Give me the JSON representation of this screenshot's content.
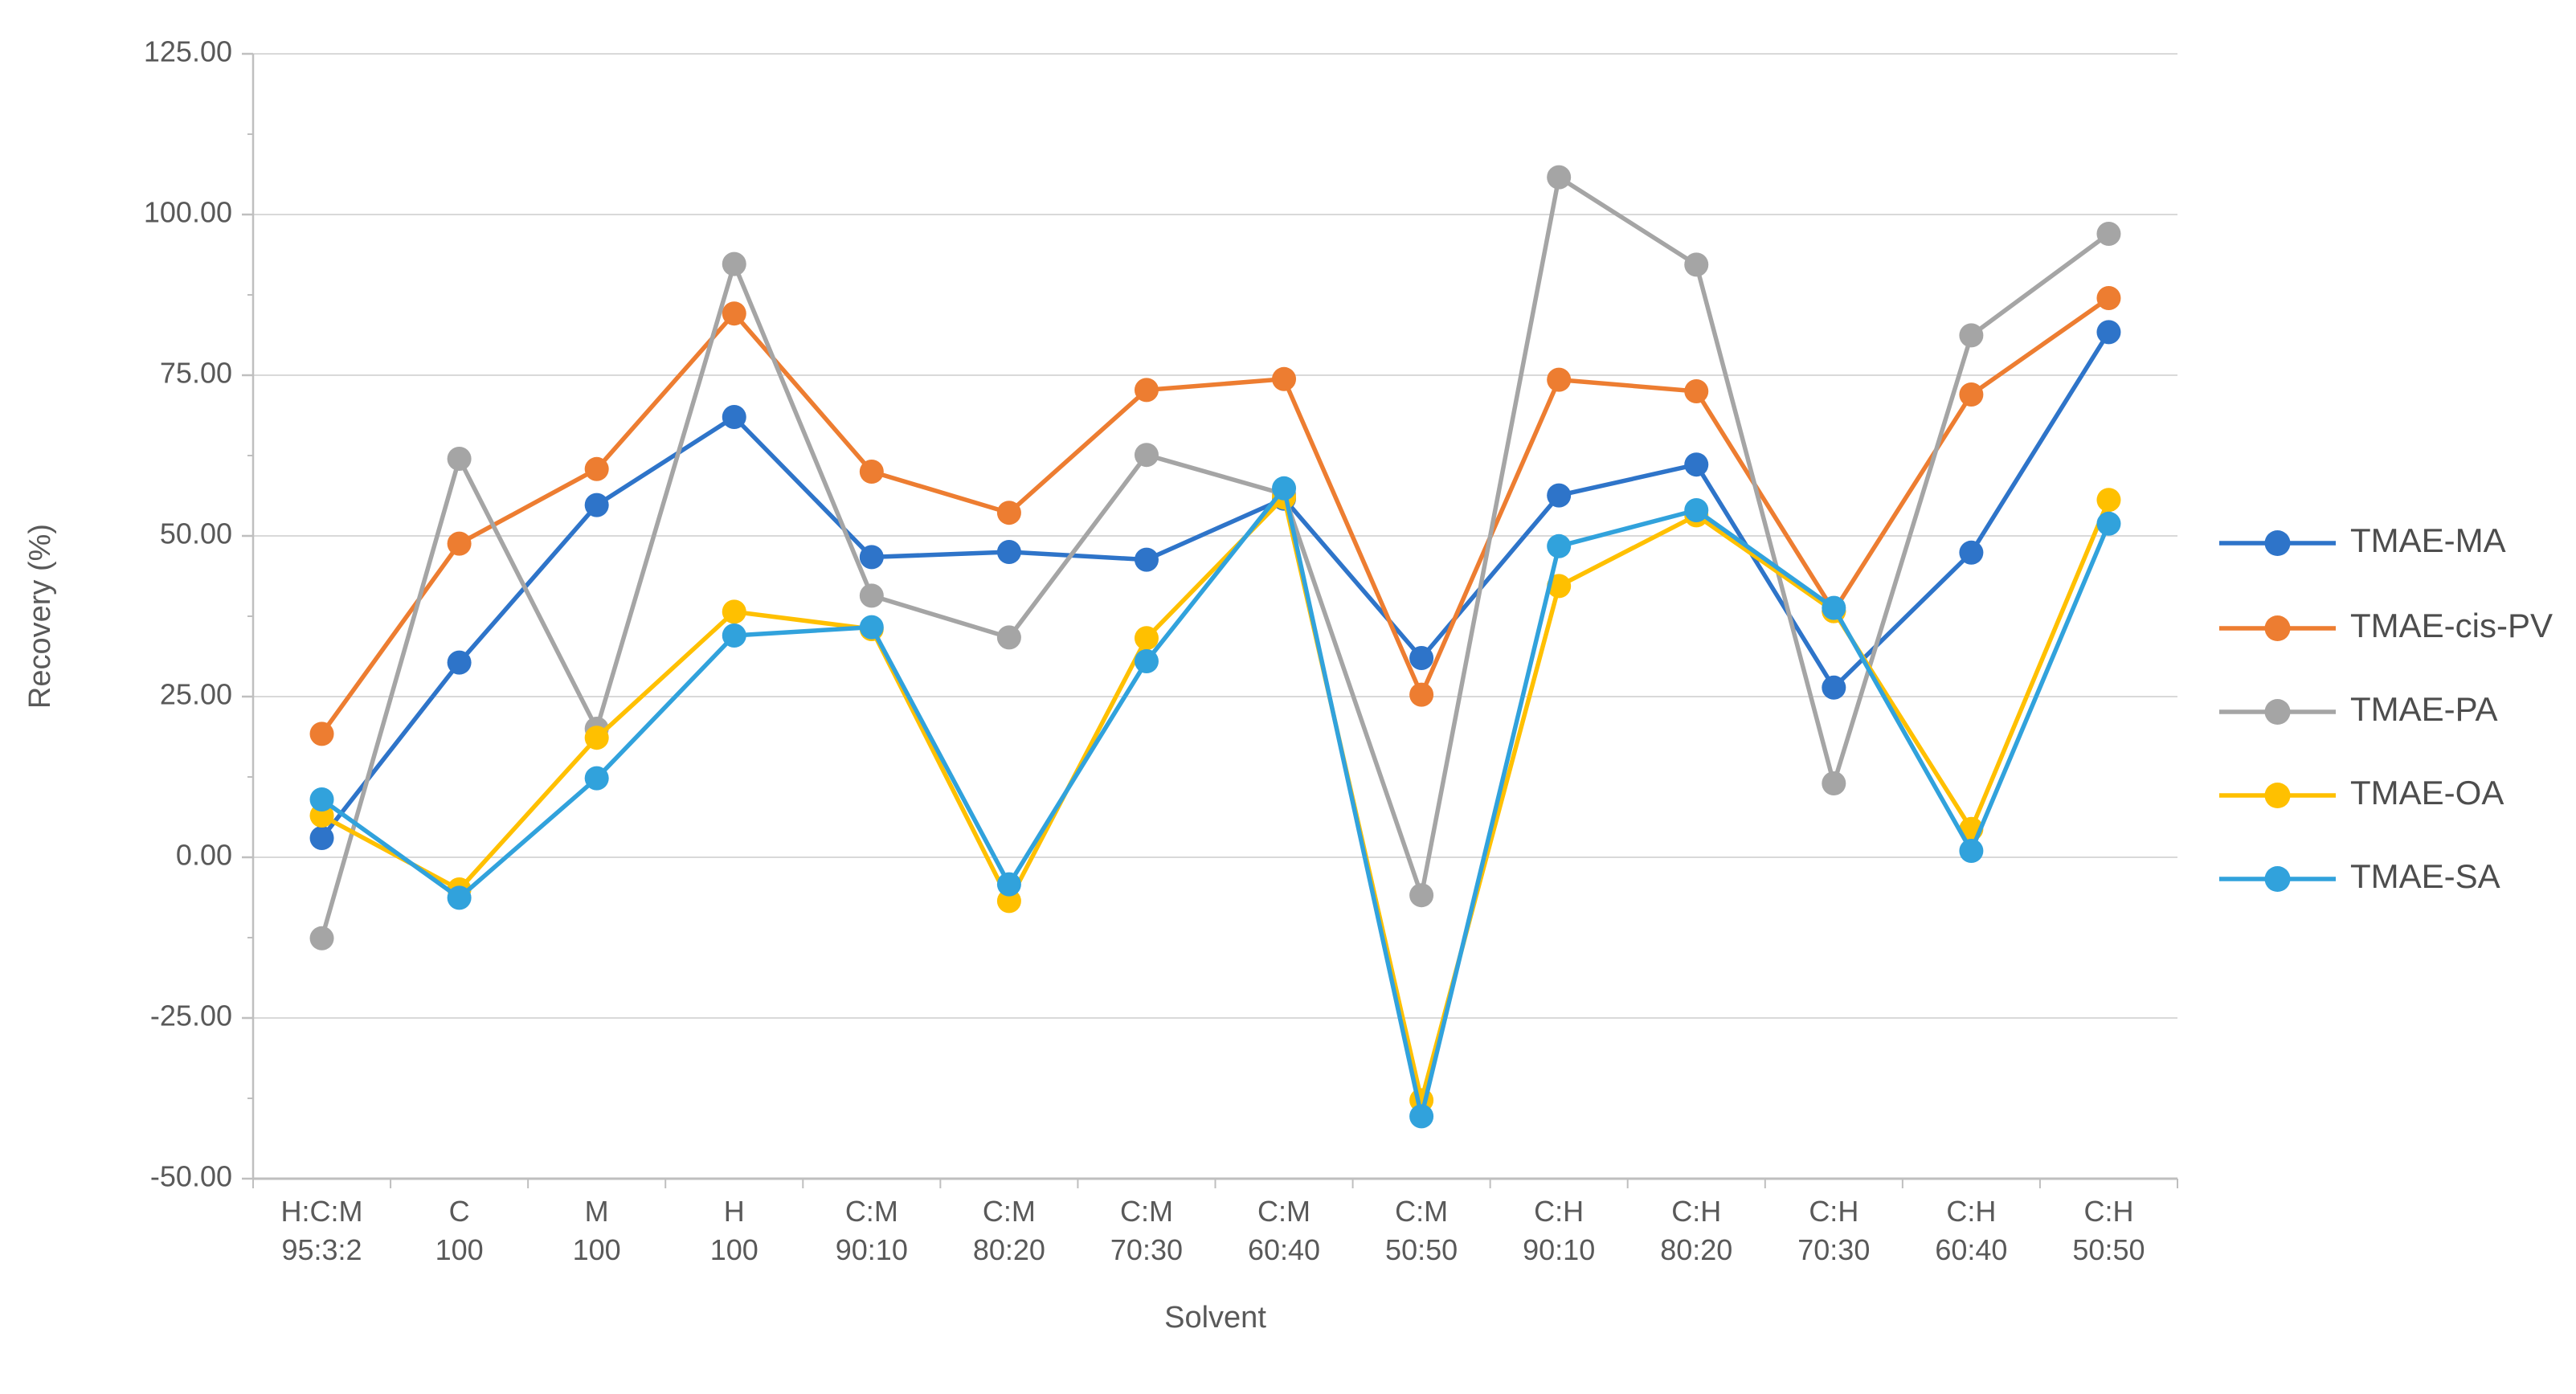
{
  "chart_data": {
    "type": "line",
    "title": "",
    "xlabel": "Solvent",
    "ylabel": "Recovery (%)",
    "ylim": [
      -50,
      125
    ],
    "ytick_step": 25,
    "ytick_labels": [
      "125.00",
      "100.00",
      "75.00",
      "50.00",
      "25.00",
      "0.00",
      "-25.00",
      "-50.00"
    ],
    "grid": true,
    "legend_position": "right",
    "categories": [
      {
        "line1": "H:C:M",
        "line2": "95:3:2"
      },
      {
        "line1": "C",
        "line2": "100"
      },
      {
        "line1": "M",
        "line2": "100"
      },
      {
        "line1": "H",
        "line2": "100"
      },
      {
        "line1": "C:M",
        "line2": "90:10"
      },
      {
        "line1": "C:M",
        "line2": "80:20"
      },
      {
        "line1": "C:M",
        "line2": "70:30"
      },
      {
        "line1": "C:M",
        "line2": "60:40"
      },
      {
        "line1": "C:M",
        "line2": "50:50"
      },
      {
        "line1": "C:H",
        "line2": "90:10"
      },
      {
        "line1": "C:H",
        "line2": "80:20"
      },
      {
        "line1": "C:H",
        "line2": "70:30"
      },
      {
        "line1": "C:H",
        "line2": "60:40"
      },
      {
        "line1": "C:H",
        "line2": "50:50"
      }
    ],
    "series": [
      {
        "name": "TMAE-MA",
        "color": "#2E74C9",
        "values": [
          3.0,
          30.3,
          54.8,
          68.5,
          46.7,
          47.5,
          46.3,
          55.8,
          31.0,
          56.3,
          61.1,
          26.4,
          47.4,
          81.7
        ]
      },
      {
        "name": "TMAE-cis-PV",
        "color": "#ED7D31",
        "values": [
          19.2,
          48.8,
          60.4,
          84.6,
          60.0,
          53.6,
          72.7,
          74.4,
          25.3,
          74.3,
          72.5,
          38.3,
          72.0,
          87.0
        ]
      },
      {
        "name": "TMAE-PA",
        "color": "#A5A5A5",
        "values": [
          -12.6,
          62.0,
          20.0,
          92.3,
          40.7,
          34.2,
          62.6,
          56.5,
          -5.9,
          105.8,
          92.2,
          11.5,
          81.2,
          97.0
        ]
      },
      {
        "name": "TMAE-OA",
        "color": "#FFC000",
        "values": [
          6.5,
          -5.0,
          18.6,
          38.2,
          35.5,
          -6.8,
          34.1,
          56.0,
          -37.8,
          42.2,
          53.2,
          38.3,
          4.4,
          55.6
        ]
      },
      {
        "name": "TMAE-SA",
        "color": "#31A2DC",
        "values": [
          9.0,
          -6.3,
          12.3,
          34.5,
          35.8,
          -4.2,
          30.5,
          57.4,
          -40.3,
          48.4,
          54.0,
          38.8,
          1.0,
          51.9
        ]
      }
    ],
    "style": {
      "grid_color": "#D9D9D9",
      "axis_color": "#BFBFBF",
      "label_color": "#595959",
      "background": "#FFFFFF"
    }
  }
}
